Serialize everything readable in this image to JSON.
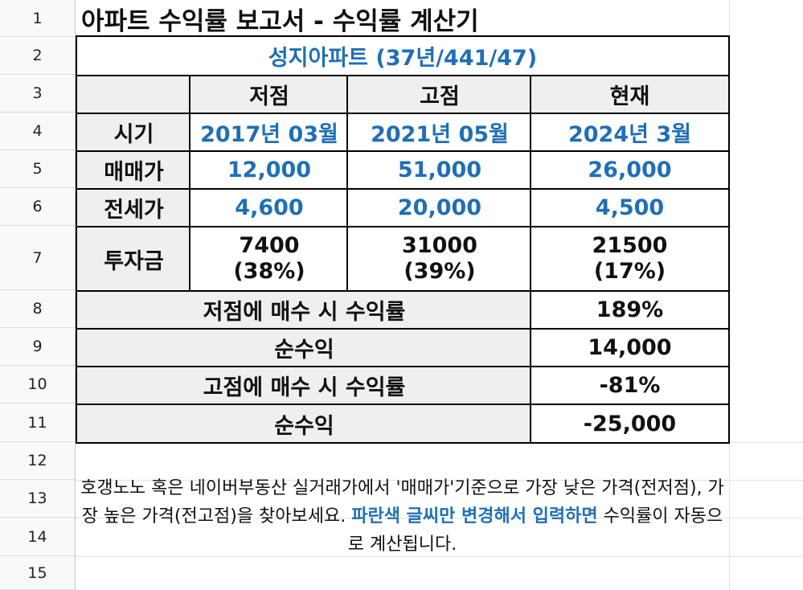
{
  "row_numbers": [
    "1",
    "2",
    "3",
    "4",
    "5",
    "6",
    "7",
    "8",
    "9",
    "10",
    "11",
    "12",
    "13",
    "14",
    "15"
  ],
  "title": "아파트 수익률 보고서 - 수익률 계산기",
  "subtitle": "성지아파트 (37년/441/47)",
  "header": {
    "low": "저점",
    "high": "고점",
    "now": "현재"
  },
  "rows": {
    "period": {
      "label": "시기",
      "low": "2017년 03월",
      "high": "2021년 05월",
      "now": "2024년 3월"
    },
    "sale": {
      "label": "매매가",
      "low": "12,000",
      "high": "51,000",
      "now": "26,000"
    },
    "jeonse": {
      "label": "전세가",
      "low": "4,600",
      "high": "20,000",
      "now": "4,500"
    },
    "invest": {
      "label": "투자금",
      "low": "7400",
      "low_pct": "(38%)",
      "high": "31000",
      "high_pct": "(39%)",
      "now": "21500",
      "now_pct": "(17%)"
    }
  },
  "results": [
    {
      "label": "저점에 매수 시 수익률",
      "value": "189%"
    },
    {
      "label": "순수익",
      "value": "14,000"
    },
    {
      "label": "고점에 매수 시 수익률",
      "value": "-81%"
    },
    {
      "label": "순수익",
      "value": "-25,000"
    }
  ],
  "note": {
    "part1": "호갱노노 혹은 네이버부동산 실거래가에서 '매매가'기준으로 가장 낮은 가격(전저점), 가장 높은 가격(전고점)을 찾아보세요. ",
    "part2": "파란색 글씨만 변경해서 입력하면",
    "part3": " 수익률이 자동으로 계산됩니다."
  },
  "colors": {
    "accent_blue": "#1f6fb5",
    "header_gray": "#efefef",
    "row_header_bg": "#f8f9fa"
  }
}
